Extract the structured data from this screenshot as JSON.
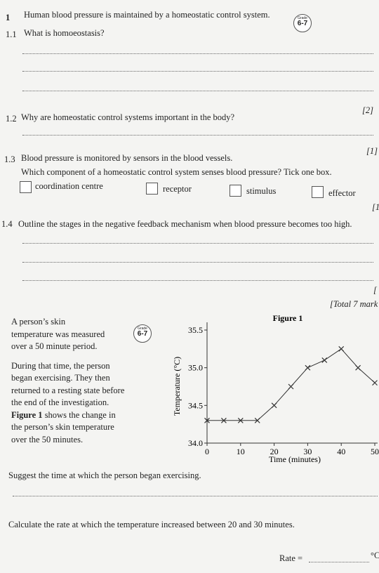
{
  "question1": {
    "number": "1",
    "text": "Human blood pressure is maintained by a homeostatic control system.",
    "grade": {
      "label": "Grade",
      "level": "6-7"
    },
    "parts": [
      {
        "number": "1.1",
        "text": "What is homoeostasis?",
        "marks": "[2]"
      },
      {
        "number": "1.2",
        "text": "Why are homeostatic control systems important in the body?",
        "marks": "[1]"
      },
      {
        "number": "1.3",
        "lines": [
          "Blood pressure is monitored by sensors in the blood vessels.",
          "Which component of a homeostatic control system senses blood pressure? Tick one box."
        ],
        "options": [
          "coordination centre",
          "receptor",
          "stimulus",
          "effector"
        ],
        "marks": "[1"
      },
      {
        "number": "1.4",
        "text": "Outline the stages in the negative feedback mechanism when blood pressure becomes too high.",
        "marks": "["
      }
    ],
    "total": "[Total 7 mark"
  },
  "question2": {
    "intro": [
      "A person’s skin",
      "temperature was measured",
      "over a 50 minute period."
    ],
    "grade": {
      "label": "Grade",
      "level": "6-7"
    },
    "description": [
      "During that time, the person",
      "began exercising. They then",
      "returned to a resting state before",
      "the end of the investigation."
    ],
    "figure_ref": {
      "bold": "Figure 1",
      "text": "shows the change in"
    },
    "description_end": [
      "the person’s skin temperature",
      "over the 50 minutes."
    ],
    "parts": [
      {
        "text": "Suggest the time at which the person began exercising."
      },
      {
        "text": "Calculate the rate at which the temperature increased between 20 and 30 minutes.",
        "answer_label": "Rate =",
        "unit": "°C"
      }
    ]
  },
  "chart_data": {
    "type": "line",
    "title": "Figure 1",
    "x_label": "Time (minutes)",
    "y_label": "Temperature (°C)",
    "x": [
      0,
      5,
      10,
      15,
      20,
      25,
      30,
      35,
      40,
      45,
      50
    ],
    "values": [
      34.3,
      34.3,
      34.3,
      34.3,
      34.5,
      34.75,
      35.0,
      35.1,
      35.25,
      35.0,
      34.8
    ],
    "color": "#333333",
    "marker": "x",
    "xlim": [
      0,
      50
    ],
    "xticks": [
      0,
      10,
      20,
      30,
      40,
      50
    ],
    "ylim": [
      34.0,
      35.5
    ],
    "yticks": [
      {
        "value": 34.0,
        "label": "34.0"
      },
      {
        "value": 34.5,
        "label": "34.5"
      },
      {
        "value": 35.0,
        "label": "35.0"
      },
      {
        "value": 35.5,
        "label": "35.5"
      }
    ]
  }
}
